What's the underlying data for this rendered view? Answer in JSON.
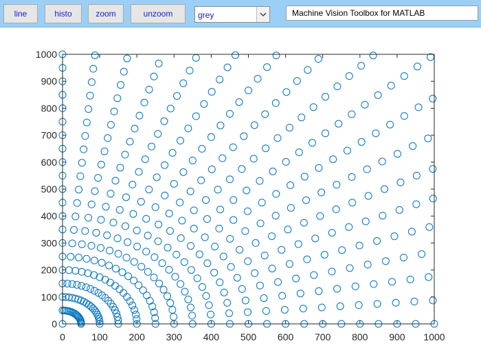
{
  "toolbar": {
    "buttons": [
      {
        "label": "line"
      },
      {
        "label": "histo"
      },
      {
        "label": "zoom"
      },
      {
        "label": "unzoom"
      }
    ],
    "colormap_select": {
      "value": "grey"
    },
    "title": "Machine Vision Toolbox for MATLAB"
  },
  "colors": {
    "marker": "#0072bd",
    "axis": "#262626",
    "toolbar": "#9ccff5"
  },
  "chart_data": {
    "type": "scatter",
    "title": "",
    "xlabel": "",
    "ylabel": "",
    "xlim": [
      0,
      1000
    ],
    "ylim": [
      0,
      1000
    ],
    "xticks": [
      0,
      100,
      200,
      300,
      400,
      500,
      600,
      700,
      800,
      900,
      1000
    ],
    "yticks": [
      0,
      100,
      200,
      300,
      400,
      500,
      600,
      700,
      800,
      900,
      1000
    ],
    "grid": false,
    "marker": "open-circle",
    "series_pattern": "polar grid: radius r = 50*k for k = 0..28, angle theta = 5 deg * j for j = 0..18 (0 to 90 deg), x = r*cos(theta), y = r*sin(theta); points outside the 0-1000 box are clipped",
    "radius_step": 50,
    "radius_count": 29,
    "angle_step_deg": 5,
    "angle_count": 19
  }
}
